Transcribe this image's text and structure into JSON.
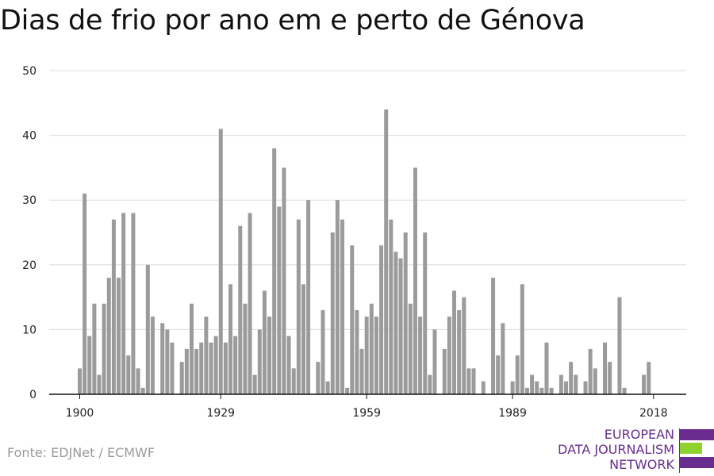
{
  "title": "Dias de frio por ano em e perto de Génova",
  "source": "Fonte: EDJNet / ECMWF",
  "logo": {
    "lines": [
      "EUROPEAN",
      "DATA JOURNALISM",
      "NETWORK"
    ],
    "colors": {
      "purple": "#6a2c8f",
      "green": "#8fd12e"
    }
  },
  "chart_data": {
    "type": "bar",
    "title": "Dias de frio por ano em e perto de Génova",
    "xlabel": "",
    "ylabel": "",
    "ylim": [
      0,
      50
    ],
    "yticks": [
      0,
      10,
      20,
      30,
      40,
      50
    ],
    "xticks": [
      1900,
      1929,
      1959,
      1989,
      2018
    ],
    "grid": true,
    "bar_color": "#9b9b9b",
    "x": [
      1900,
      1901,
      1902,
      1903,
      1904,
      1905,
      1906,
      1907,
      1908,
      1909,
      1910,
      1911,
      1912,
      1913,
      1914,
      1915,
      1916,
      1917,
      1918,
      1919,
      1920,
      1921,
      1922,
      1923,
      1924,
      1925,
      1926,
      1927,
      1928,
      1929,
      1930,
      1931,
      1932,
      1933,
      1934,
      1935,
      1936,
      1937,
      1938,
      1939,
      1940,
      1941,
      1942,
      1943,
      1944,
      1945,
      1946,
      1947,
      1948,
      1949,
      1950,
      1951,
      1952,
      1953,
      1954,
      1955,
      1956,
      1957,
      1958,
      1959,
      1960,
      1961,
      1962,
      1963,
      1964,
      1965,
      1966,
      1967,
      1968,
      1969,
      1970,
      1971,
      1972,
      1973,
      1974,
      1975,
      1976,
      1977,
      1978,
      1979,
      1980,
      1981,
      1982,
      1983,
      1984,
      1985,
      1986,
      1987,
      1988,
      1989,
      1990,
      1991,
      1992,
      1993,
      1994,
      1995,
      1996,
      1997,
      1998,
      1999,
      2000,
      2001,
      2002,
      2003,
      2004,
      2005,
      2006,
      2007,
      2008,
      2009,
      2010,
      2011,
      2012,
      2013,
      2014,
      2015,
      2016,
      2017,
      2018,
      2019,
      2020
    ],
    "values": [
      4,
      31,
      9,
      14,
      3,
      14,
      18,
      27,
      18,
      28,
      6,
      28,
      4,
      1,
      20,
      12,
      0,
      11,
      10,
      8,
      0,
      5,
      7,
      14,
      7,
      8,
      12,
      8,
      9,
      41,
      8,
      17,
      9,
      26,
      14,
      28,
      3,
      10,
      16,
      12,
      38,
      29,
      35,
      9,
      4,
      27,
      17,
      30,
      0,
      5,
      13,
      2,
      25,
      30,
      27,
      1,
      23,
      13,
      7,
      12,
      14,
      12,
      23,
      44,
      27,
      22,
      21,
      25,
      14,
      35,
      12,
      25,
      3,
      10,
      0,
      7,
      12,
      16,
      13,
      15,
      4,
      4,
      0,
      2,
      0,
      18,
      6,
      11,
      0,
      2,
      6,
      17,
      1,
      3,
      2,
      1,
      8,
      1,
      0,
      3,
      2,
      5,
      3,
      0,
      2,
      7,
      4,
      0,
      8,
      5,
      0,
      15,
      1,
      0,
      0,
      0,
      3,
      5,
      0,
      0,
      0
    ]
  }
}
